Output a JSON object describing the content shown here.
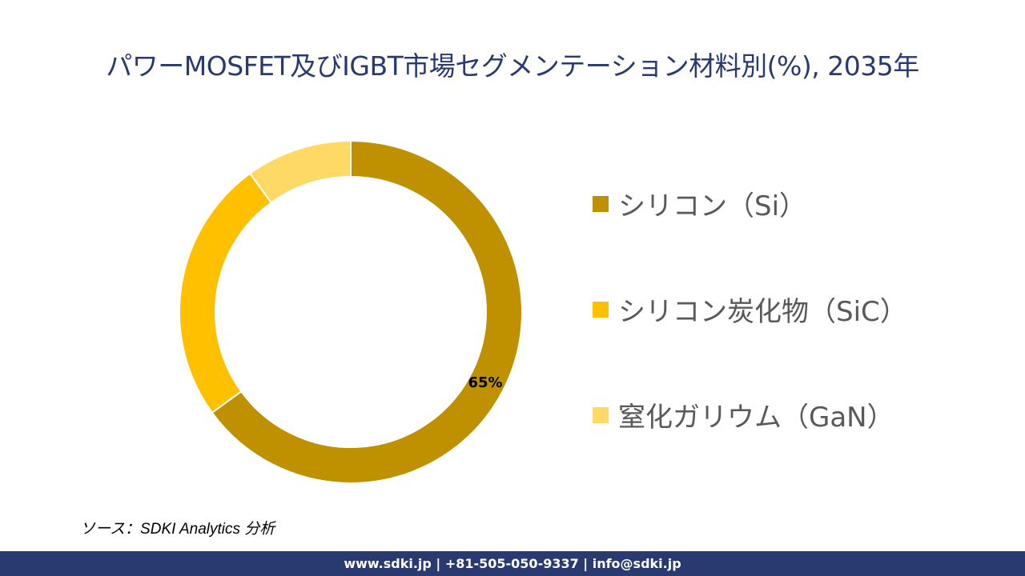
{
  "chart_data": {
    "type": "pie",
    "variant": "donut",
    "title": "パワーMOSFET及びIGBT市場セグメンテーション材料別(%), 2035年",
    "categories": [
      "シリコン（Si）",
      "シリコン炭化物（SiC）",
      "窒化ガリウム（GaN）"
    ],
    "values": [
      65,
      25,
      10
    ],
    "data_labels": [
      "65%",
      "",
      ""
    ],
    "colors": [
      "#bf9000",
      "#ffc000",
      "#ffd966"
    ],
    "legend_position": "right"
  },
  "source": "ソース：SDKI Analytics 分析",
  "footer": "www.sdki.jp | +81-505-050-9337 | info@sdki.jp"
}
